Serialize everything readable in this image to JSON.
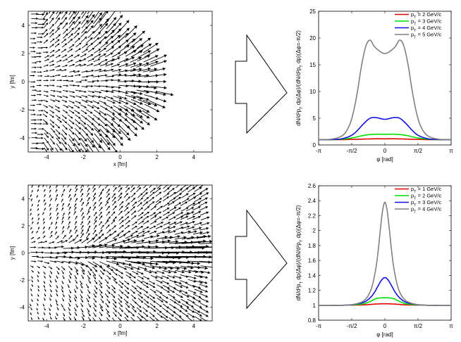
{
  "chart_data": [
    {
      "type": "vector-field",
      "xlabel": "x [fm]",
      "ylabel": "y [fm]",
      "xlim": [
        -5,
        5
      ],
      "ylim": [
        -5,
        5
      ],
      "x_ticks": [
        "-4",
        "-2",
        "0",
        "2",
        "4"
      ],
      "y_ticks": [
        "4",
        "2",
        "0",
        "-2",
        "-4"
      ]
    },
    {
      "type": "line",
      "title": "",
      "xlabel": "φ [rad]",
      "ylabel": "dN/d²p_T dp(Δφ)/(dN/d²p_T dp)(Δφ=-π/2)",
      "xlim": [
        -3.1416,
        3.1416
      ],
      "ylim": [
        0,
        25
      ],
      "x_tick_labels": [
        "-π",
        "-π/2",
        "0",
        "π/2",
        "π"
      ],
      "y_tick_labels": [
        "0",
        "5",
        "10",
        "15",
        "20",
        "25"
      ],
      "legend_position": "top-right",
      "series": [
        {
          "name": "p_T = 2 GeV/c",
          "color": "#e00000",
          "x": [
            -3.14,
            -2.5,
            -2.0,
            -1.5,
            -1.0,
            -0.5,
            0,
            0.5,
            1.0,
            1.5,
            2.0,
            2.5,
            3.14
          ],
          "values": [
            1.0,
            1.0,
            1.0,
            1.05,
            1.1,
            1.15,
            1.15,
            1.15,
            1.1,
            1.05,
            1.0,
            1.0,
            1.0
          ]
        },
        {
          "name": "p_T = 3 GeV/c",
          "color": "#00dd00",
          "x": [
            -3.14,
            -2.5,
            -2.0,
            -1.5,
            -1.0,
            -0.5,
            0,
            0.5,
            1.0,
            1.5,
            2.0,
            2.5,
            3.14
          ],
          "values": [
            1.0,
            1.0,
            1.1,
            1.35,
            1.8,
            2.0,
            2.0,
            2.0,
            1.8,
            1.35,
            1.1,
            1.0,
            1.0
          ]
        },
        {
          "name": "p_T = 4 GeV/c",
          "color": "#1010e0",
          "x": [
            -3.14,
            -2.5,
            -2.0,
            -1.5,
            -1.0,
            -0.7,
            -0.4,
            0,
            0.4,
            0.7,
            1.0,
            1.5,
            2.0,
            2.5,
            3.14
          ],
          "values": [
            1.0,
            1.02,
            1.2,
            2.0,
            4.0,
            5.0,
            5.1,
            4.8,
            5.1,
            5.0,
            4.0,
            2.0,
            1.2,
            1.02,
            1.0
          ]
        },
        {
          "name": "p_T = 5 GeV/c",
          "color": "#808080",
          "x": [
            -3.14,
            -2.5,
            -2.0,
            -1.7,
            -1.5,
            -1.3,
            -1.1,
            -0.9,
            -0.7,
            -0.45,
            0,
            0.45,
            0.7,
            0.9,
            1.1,
            1.3,
            1.5,
            1.7,
            2.0,
            2.5,
            3.14
          ],
          "values": [
            1.0,
            1.1,
            1.8,
            3.5,
            6.0,
            10.0,
            15.0,
            18.5,
            19.6,
            18.2,
            17.1,
            18.2,
            19.6,
            18.5,
            15.0,
            10.0,
            6.0,
            3.5,
            1.8,
            1.1,
            1.0
          ]
        }
      ]
    },
    {
      "type": "vector-field",
      "xlabel": "x [fm]",
      "ylabel": "y [fm]",
      "xlim": [
        -5,
        5
      ],
      "ylim": [
        -5,
        5
      ],
      "x_ticks": [
        "-4",
        "-2",
        "0",
        "2",
        "4"
      ],
      "y_ticks": [
        "4",
        "2",
        "0",
        "-2",
        "-4"
      ]
    },
    {
      "type": "line",
      "title": "",
      "xlabel": "φ [rad]",
      "ylabel": "dN/d²p_T dp(Δφ)/(dN/d²p_T dp)(Δφ=-π/2)",
      "xlim": [
        -3.1416,
        3.1416
      ],
      "ylim": [
        0.8,
        2.6
      ],
      "x_tick_labels": [
        "-π",
        "-π/2",
        "0",
        "π/2",
        "π"
      ],
      "y_tick_labels": [
        "0.8",
        "1",
        "1.2",
        "1.4",
        "1.6",
        "1.8",
        "2",
        "2.2",
        "2.4",
        "2.6"
      ],
      "legend_position": "top-right",
      "series": [
        {
          "name": "p_T = 1 GeV/c",
          "color": "#e00000",
          "x": [
            -3.14,
            -2.0,
            -1.0,
            -0.5,
            0,
            0.5,
            1.0,
            2.0,
            3.14
          ],
          "values": [
            1.0,
            1.0,
            1.005,
            1.015,
            1.02,
            1.015,
            1.005,
            1.0,
            1.0
          ]
        },
        {
          "name": "p_T = 2 GeV/c",
          "color": "#00dd00",
          "x": [
            -3.14,
            -2.0,
            -1.5,
            -1.0,
            -0.7,
            -0.4,
            0,
            0.4,
            0.7,
            1.0,
            1.5,
            2.0,
            3.14
          ],
          "values": [
            1.0,
            1.0,
            1.005,
            1.02,
            1.05,
            1.09,
            1.1,
            1.09,
            1.05,
            1.02,
            1.005,
            1.0,
            1.0
          ]
        },
        {
          "name": "p_T = 3 GeV/c",
          "color": "#1010e0",
          "x": [
            -3.14,
            -2.0,
            -1.5,
            -1.0,
            -0.7,
            -0.5,
            -0.3,
            -0.15,
            0,
            0.15,
            0.3,
            0.5,
            0.7,
            1.0,
            1.5,
            2.0,
            3.14
          ],
          "values": [
            1.0,
            1.0,
            1.01,
            1.04,
            1.1,
            1.17,
            1.27,
            1.34,
            1.37,
            1.34,
            1.27,
            1.17,
            1.1,
            1.04,
            1.01,
            1.0,
            1.0
          ]
        },
        {
          "name": "p_T = 4 GeV/c",
          "color": "#808080",
          "x": [
            -3.14,
            -2.0,
            -1.5,
            -1.0,
            -0.7,
            -0.5,
            -0.35,
            -0.2,
            -0.1,
            0,
            0.1,
            0.2,
            0.35,
            0.5,
            0.7,
            1.0,
            1.5,
            2.0,
            3.14
          ],
          "values": [
            1.0,
            1.0,
            1.01,
            1.06,
            1.18,
            1.38,
            1.65,
            2.05,
            2.28,
            2.38,
            2.28,
            2.05,
            1.65,
            1.38,
            1.18,
            1.06,
            1.01,
            1.0,
            1.0
          ]
        }
      ]
    }
  ]
}
